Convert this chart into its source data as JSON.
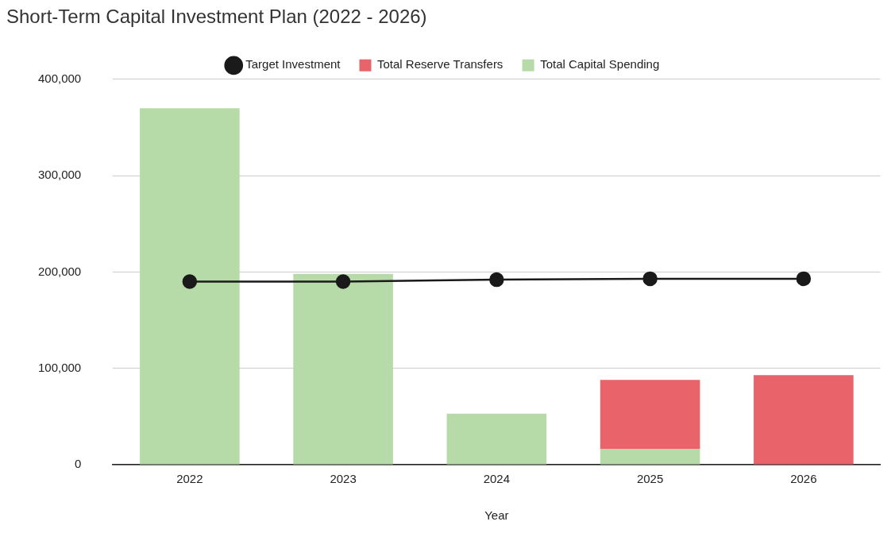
{
  "chart_data": {
    "type": "bar",
    "title": "Short-Term Capital Investment Plan (2022 - 2026)",
    "xlabel": "Year",
    "categories": [
      "2022",
      "2023",
      "2024",
      "2025",
      "2026"
    ],
    "stacked": true,
    "series": [
      {
        "name": "Target Investment",
        "type": "line",
        "color": "#1a1a1a",
        "marker": "circle",
        "values": [
          190000,
          190000,
          192000,
          193000,
          193000
        ]
      },
      {
        "name": "Total Capital Spending",
        "color": "#b7dba8",
        "values": [
          370000,
          198000,
          53000,
          16000,
          0
        ]
      },
      {
        "name": "Total Reserve Transfers",
        "color": "#e8646a",
        "values": [
          0,
          0,
          0,
          72000,
          93000
        ]
      }
    ],
    "ylim": [
      0,
      400000
    ],
    "yticks": [
      {
        "value": 0,
        "label": "0"
      },
      {
        "value": 100000,
        "label": "100,000"
      },
      {
        "value": 200000,
        "label": "200,000"
      },
      {
        "value": 300000,
        "label": "300,000"
      },
      {
        "value": 400000,
        "label": "400,000"
      }
    ],
    "grid": "y",
    "legend": "top"
  }
}
